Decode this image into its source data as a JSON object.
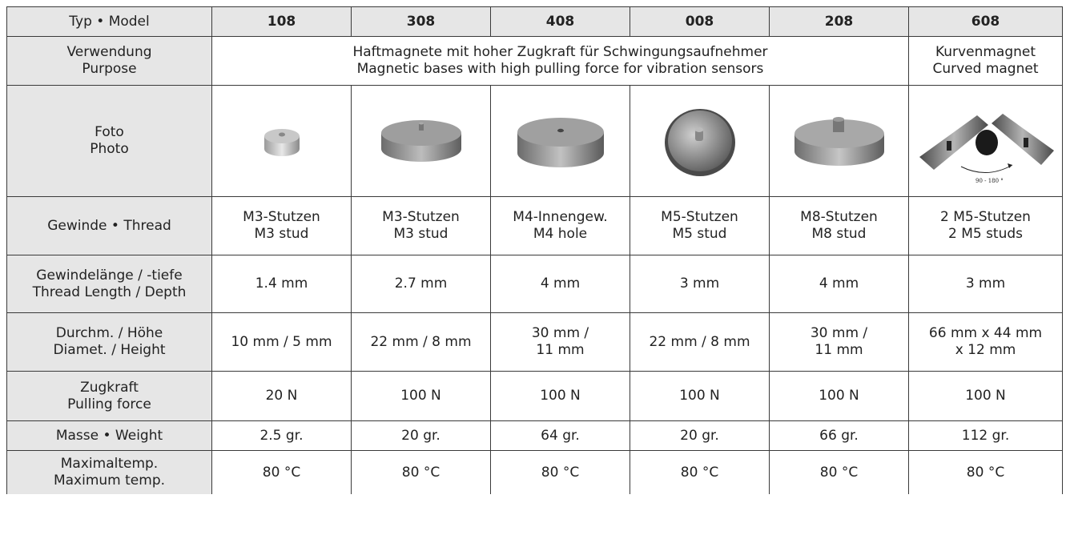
{
  "header": {
    "label": "Typ • Model",
    "models": [
      "108",
      "308",
      "408",
      "008",
      "208",
      "608"
    ]
  },
  "purpose": {
    "label_de": "Verwendung",
    "label_en": "Purpose",
    "group_de": "Haftmagnete mit hoher Zugkraft für Schwingungsaufnehmer",
    "group_en": "Magnetic bases with high pulling force for vibration sensors",
    "curved_de": "Kurvenmagnet",
    "curved_en": "Curved magnet"
  },
  "photo": {
    "label_de": "Foto",
    "label_en": "Photo",
    "angle_note": "90 - 180 °",
    "icons": [
      "magnet-108-photo",
      "magnet-308-photo",
      "magnet-408-photo",
      "magnet-008-photo",
      "magnet-208-photo",
      "magnet-608-curved-photo"
    ]
  },
  "thread": {
    "label": "Gewinde • Thread",
    "values": [
      [
        "M3-Stutzen",
        "M3 stud"
      ],
      [
        "M3-Stutzen",
        "M3 stud"
      ],
      [
        "M4-Innengew.",
        "M4 hole"
      ],
      [
        "M5-Stutzen",
        "M5 stud"
      ],
      [
        "M8-Stutzen",
        "M8 stud"
      ],
      [
        "2 M5-Stutzen",
        "2 M5 studs"
      ]
    ]
  },
  "thread_length": {
    "label_de": "Gewindelänge / -tiefe",
    "label_en": "Thread Length / Depth",
    "values": [
      "1.4 mm",
      "2.7 mm",
      "4 mm",
      "3 mm",
      "4 mm",
      "3 mm"
    ]
  },
  "diameter": {
    "label_de": "Durchm. / Höhe",
    "label_en": "Diamet. / Height",
    "values": [
      [
        "10 mm / 5 mm"
      ],
      [
        "22 mm / 8 mm"
      ],
      [
        "30 mm /",
        "11 mm"
      ],
      [
        "22 mm / 8 mm"
      ],
      [
        "30 mm /",
        "11 mm"
      ],
      [
        "66 mm x 44 mm",
        "x 12 mm"
      ]
    ]
  },
  "pulling_force": {
    "label_de": "Zugkraft",
    "label_en": "Pulling force",
    "values": [
      "20 N",
      "100 N",
      "100 N",
      "100 N",
      "100 N",
      "100 N"
    ]
  },
  "weight": {
    "label": "Masse • Weight",
    "values": [
      "2.5 gr.",
      "20 gr.",
      "64 gr.",
      "20 gr.",
      "66 gr.",
      "112 gr."
    ]
  },
  "max_temp": {
    "label_de": "Maximaltemp.",
    "label_en": "Maximum temp.",
    "values": [
      "80 °C",
      "80 °C",
      "80 °C",
      "80 °C",
      "80 °C",
      "80 °C"
    ]
  }
}
